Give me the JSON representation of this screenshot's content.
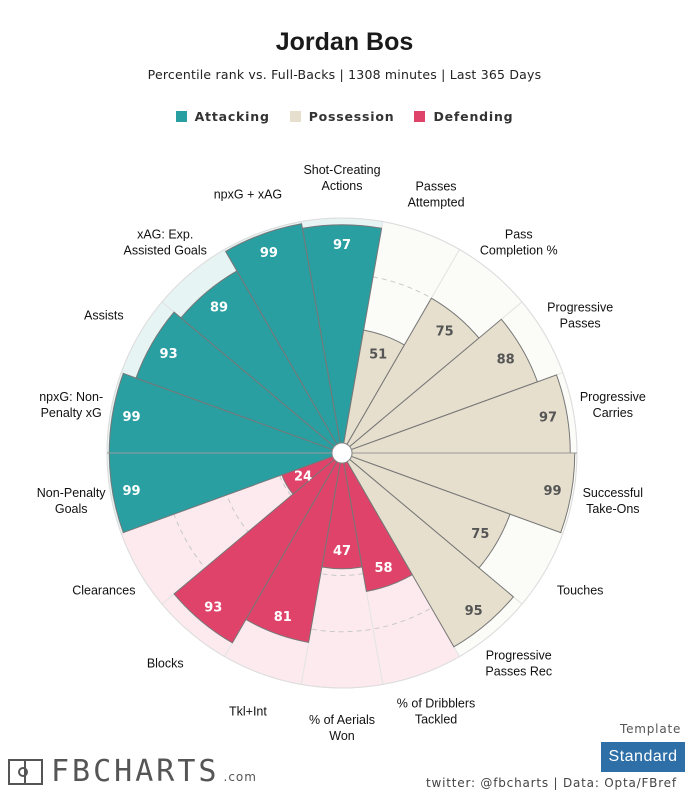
{
  "header": {
    "title": "Jordan Bos",
    "subtitle": "Percentile rank vs. Full-Backs | 1308 minutes | Last 365 Days"
  },
  "legend": [
    {
      "name": "Attacking",
      "color": "#2a9fa2"
    },
    {
      "name": "Possession",
      "color": "#e6dfcd"
    },
    {
      "name": "Defending",
      "color": "#e0436a"
    }
  ],
  "chart_data": {
    "type": "radial-bar",
    "scale": [
      0,
      100
    ],
    "slices": [
      {
        "label": "Shot-Creating\nActions",
        "value": 97,
        "group": "Attacking"
      },
      {
        "label": "Passes\nAttempted",
        "value": 51,
        "group": "Possession"
      },
      {
        "label": "Pass\nCompletion %",
        "value": 75,
        "group": "Possession"
      },
      {
        "label": "Progressive\nPasses",
        "value": 88,
        "group": "Possession"
      },
      {
        "label": "Progressive\nCarries",
        "value": 97,
        "group": "Possession"
      },
      {
        "label": "Successful\nTake-Ons",
        "value": 99,
        "group": "Possession"
      },
      {
        "label": "Touches",
        "value": 75,
        "group": "Possession"
      },
      {
        "label": "Progressive\nPasses Rec",
        "value": 95,
        "group": "Possession"
      },
      {
        "label": "% of Dribblers\nTackled",
        "value": 58,
        "group": "Defending"
      },
      {
        "label": "% of Aerials\nWon",
        "value": 47,
        "group": "Defending"
      },
      {
        "label": "Tkl+Int",
        "value": 81,
        "group": "Defending"
      },
      {
        "label": "Blocks",
        "value": 93,
        "group": "Defending"
      },
      {
        "label": "Clearances",
        "value": 24,
        "group": "Defending"
      },
      {
        "label": "Non-Penalty\nGoals",
        "value": 99,
        "group": "Attacking"
      },
      {
        "label": "npxG: Non-\nPenalty xG",
        "value": 99,
        "group": "Attacking"
      },
      {
        "label": "Assists",
        "value": 93,
        "group": "Attacking"
      },
      {
        "label": "xAG: Exp.\nAssisted Goals",
        "value": 89,
        "group": "Attacking"
      },
      {
        "label": "npxG + xAG",
        "value": 99,
        "group": "Attacking"
      }
    ],
    "colors": {
      "Attacking": {
        "fill": "#2a9fa2",
        "bg": "#e7f4f4",
        "text": "#ffffff"
      },
      "Possession": {
        "fill": "#e6dfcd",
        "bg": "#fbfbf8",
        "text": "#555555"
      },
      "Defending": {
        "fill": "#e0436a",
        "bg": "#fdeaef",
        "text": "#ffffff"
      }
    }
  },
  "footer": {
    "template_label": "Template",
    "template_value": "Standard",
    "credit": "twitter: @fbcharts | Data: Opta/FBref",
    "logo_text": "FBCHARTS",
    "logo_suffix": ".com"
  }
}
